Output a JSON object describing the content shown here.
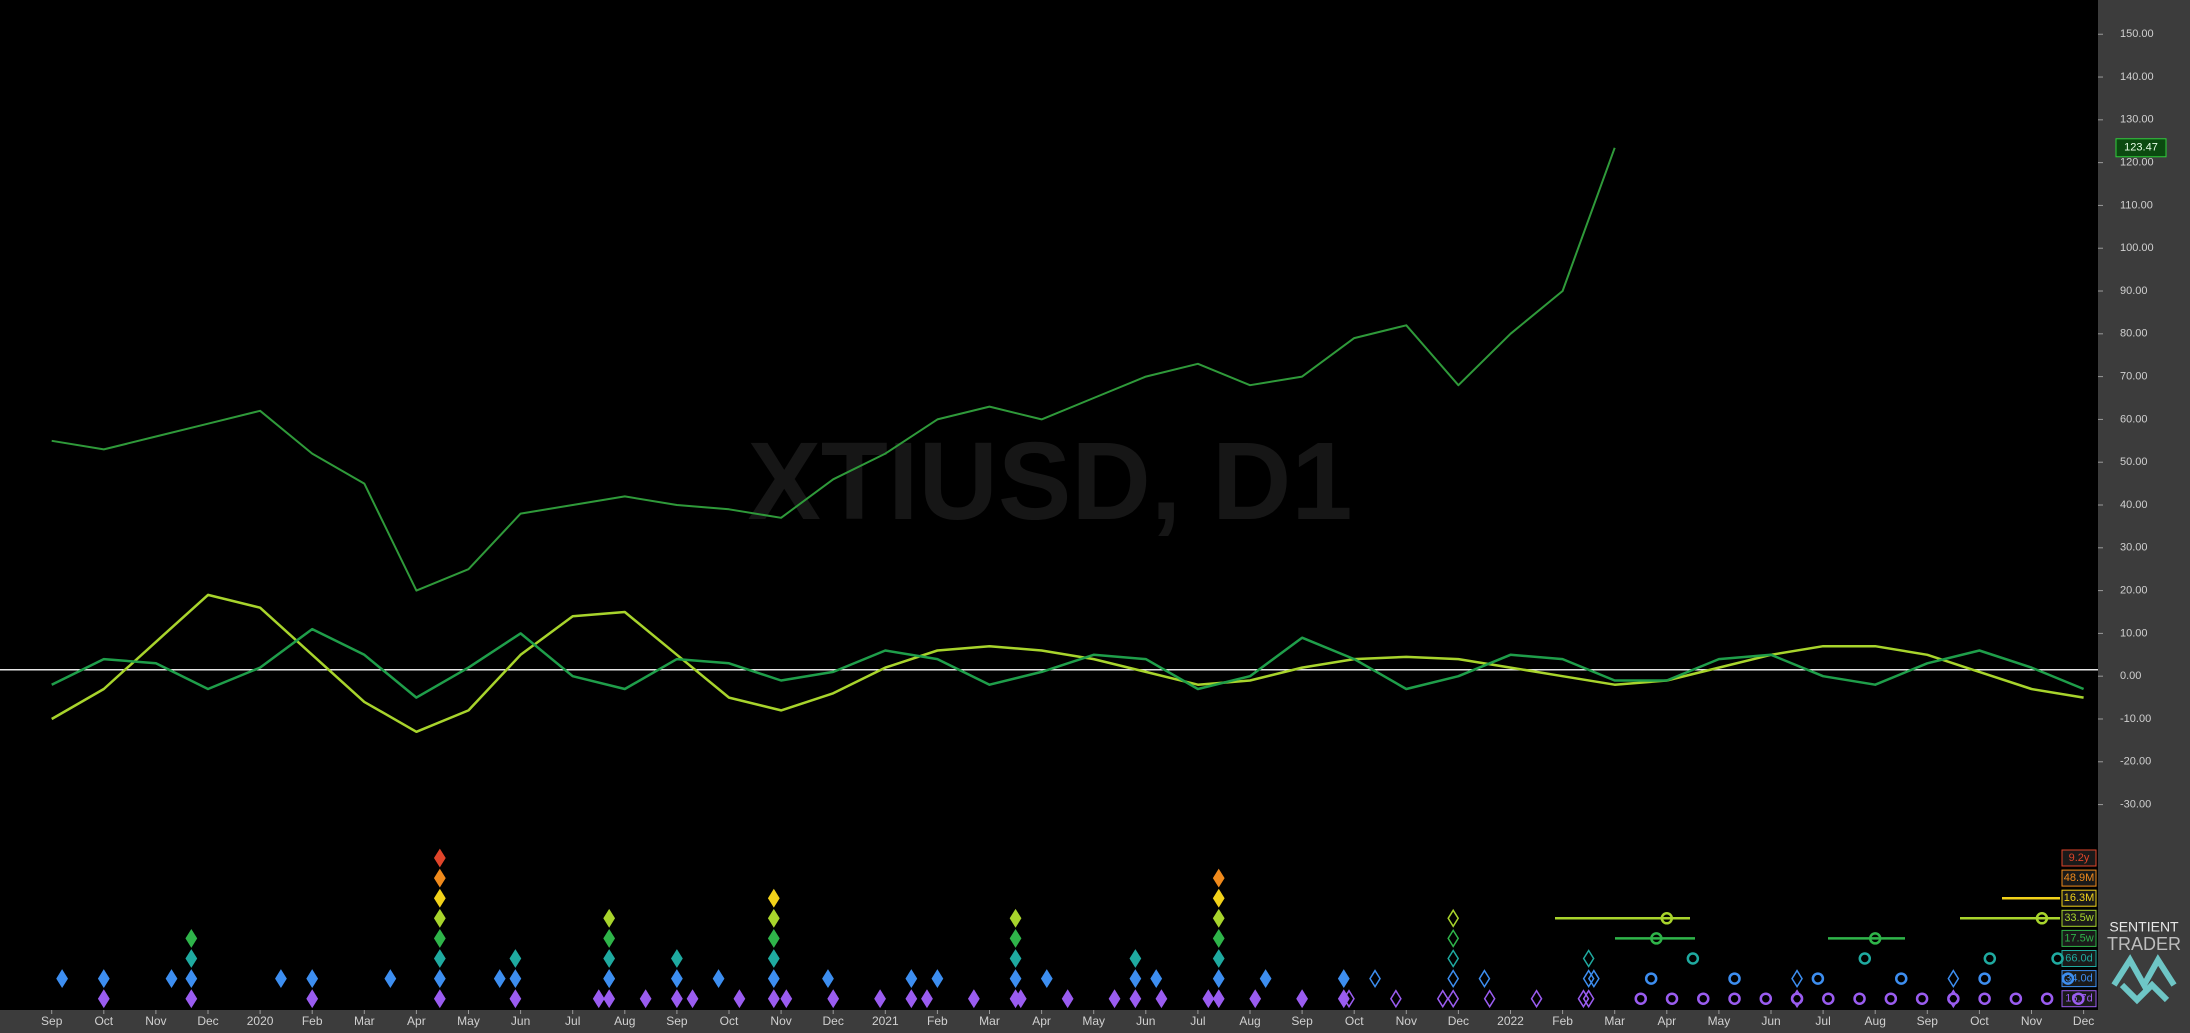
{
  "chart_data": {
    "type": "line",
    "watermark": "XTIUSD, D1",
    "categories": [
      "Sep",
      "Oct",
      "Nov",
      "Dec",
      "2020",
      "Feb",
      "Mar",
      "Apr",
      "May",
      "Jun",
      "Jul",
      "Aug",
      "Sep",
      "Oct",
      "Nov",
      "Dec",
      "2021",
      "Feb",
      "Mar",
      "Apr",
      "May",
      "Jun",
      "Jul",
      "Aug",
      "Sep",
      "Oct",
      "Nov",
      "Dec",
      "2022",
      "Feb",
      "Mar",
      "Apr",
      "May",
      "Jun",
      "Jul",
      "Aug",
      "Sep",
      "Oct",
      "Nov",
      "Dec"
    ],
    "series": [
      {
        "color": "#2f9a3a",
        "values": [
          55,
          53,
          56,
          59,
          62,
          52,
          45,
          20,
          25,
          38,
          40,
          42,
          40,
          39,
          37,
          46,
          52,
          60,
          63,
          60,
          65,
          70,
          73,
          68,
          70,
          79,
          82,
          68,
          80,
          90,
          123.47,
          null,
          null,
          null,
          null,
          null,
          null,
          null,
          null,
          null
        ]
      },
      {
        "color": "#a8d42c",
        "values": [
          -10,
          -3,
          8,
          19,
          16,
          5,
          -6,
          -13,
          -8,
          5,
          14,
          15,
          5,
          -5,
          -8,
          -4,
          2,
          6,
          7,
          6,
          4,
          1,
          -2,
          -1,
          2,
          4,
          4.5,
          4,
          2,
          0,
          -2,
          -1,
          2,
          5,
          7,
          7,
          5,
          1,
          -3,
          -5
        ]
      },
      {
        "color": "#1f9e4a",
        "values": [
          -2,
          4,
          3,
          -3,
          2,
          11,
          5,
          -5,
          2,
          10,
          0,
          -3,
          4,
          3,
          -1,
          1,
          6,
          4,
          -2,
          1,
          5,
          4,
          -3,
          0,
          9,
          4,
          -3,
          0,
          5,
          4,
          -1,
          -1,
          4,
          5,
          0,
          -2,
          3,
          6,
          2,
          -3
        ]
      }
    ],
    "last_price": 123.47,
    "hline": 1.5,
    "ylim": [
      -78,
      158
    ],
    "yticks": [
      {
        "value": 150,
        "label": "150.00"
      },
      {
        "value": 140,
        "label": "140.00"
      },
      {
        "value": 130,
        "label": "130.00"
      },
      {
        "value": 120,
        "label": "120.00"
      },
      {
        "value": 110,
        "label": "110.00"
      },
      {
        "value": 100,
        "label": "100.00"
      },
      {
        "value": 90,
        "label": "90.00"
      },
      {
        "value": 80,
        "label": "80.00"
      },
      {
        "value": 70,
        "label": "70.00"
      },
      {
        "value": 60,
        "label": "60.00"
      },
      {
        "value": 50,
        "label": "50.00"
      },
      {
        "value": 40,
        "label": "40.00"
      },
      {
        "value": 30,
        "label": "30.00"
      },
      {
        "value": 20,
        "label": "20.00"
      },
      {
        "value": 10,
        "label": "10.00"
      },
      {
        "value": 0,
        "label": "0.00"
      },
      {
        "value": -10,
        "label": "-10.00"
      },
      {
        "value": -20,
        "label": "-20.00"
      },
      {
        "value": -30,
        "label": "-30.00"
      }
    ],
    "cycles": [
      {
        "label": "9.2y",
        "color": "#e0452a"
      },
      {
        "label": "48.9M",
        "color": "#f08a1c"
      },
      {
        "label": "16.3M",
        "color": "#f2d21a"
      },
      {
        "label": "33.5w",
        "color": "#a8d42c"
      },
      {
        "label": "17.5w",
        "color": "#2fb44a"
      },
      {
        "label": "66.0d",
        "color": "#1faaa0"
      },
      {
        "label": "34.0d",
        "color": "#3d8ef0"
      },
      {
        "label": "16.7d",
        "color": "#9a5cf0"
      }
    ],
    "brand": {
      "line1": "SENTIENT",
      "line2": "TRADER"
    }
  }
}
